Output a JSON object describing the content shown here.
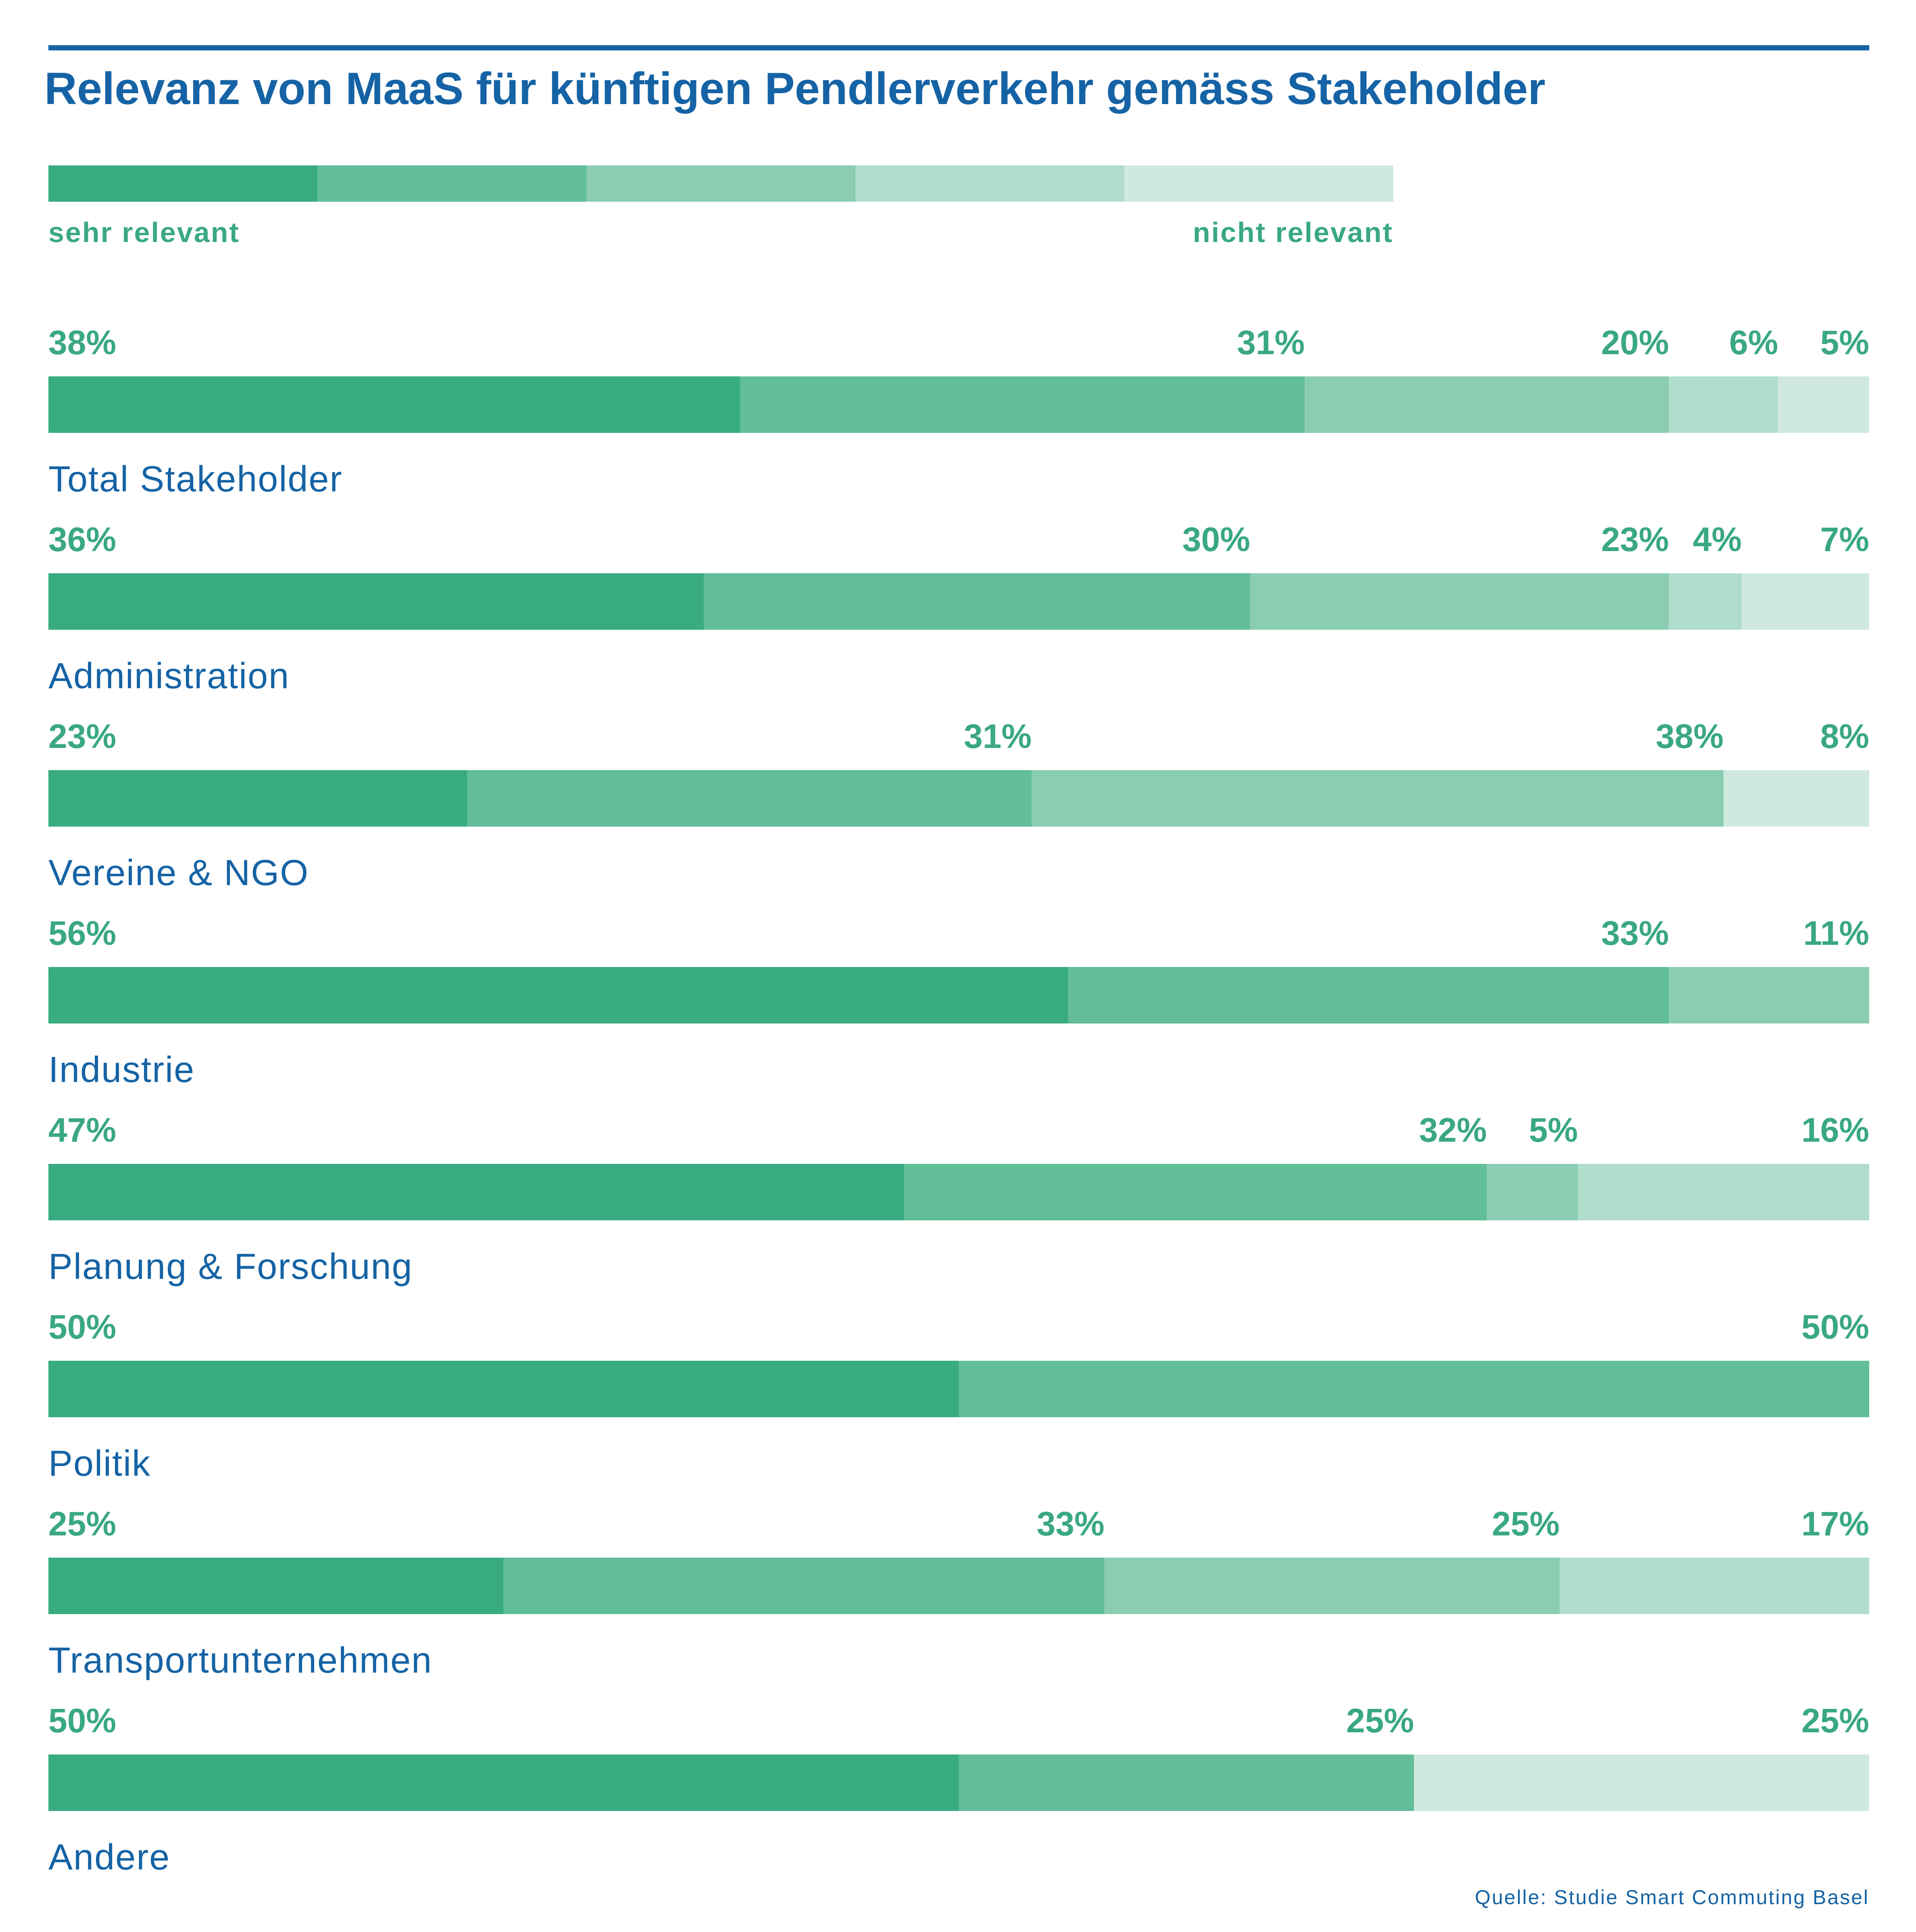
{
  "title": "Relevanz von MaaS für künftigen Pendlerverkehr gemäss Stakeholder",
  "source": "Quelle: Studie Smart Commuting Basel",
  "colors": {
    "title": "#1563a5",
    "text": "#1563a5",
    "labels": "#3aa882",
    "levels": [
      "#38ac80",
      "#61be98",
      "#8bcdb2",
      "#b1ddcc",
      "#d0e9de"
    ]
  },
  "legend": {
    "left_label": "sehr relevant",
    "right_label": "nicht relevant",
    "levels": 5
  },
  "chart_data": {
    "type": "bar",
    "orientation": "horizontal",
    "stacked": "100%",
    "unit": "%",
    "categories": [
      "Total Stakeholder",
      "Administration",
      "Vereine & NGO",
      "Industrie",
      "Planung & Forschung",
      "Politik",
      "Transportunternehmen",
      "Andere"
    ],
    "levels_order": "sehr relevant → nicht relevant (level 1 to 5)",
    "rows": [
      {
        "category": "Total Stakeholder",
        "segments": [
          {
            "level": 1,
            "value": 38
          },
          {
            "level": 2,
            "value": 31
          },
          {
            "level": 3,
            "value": 20
          },
          {
            "level": 4,
            "value": 6
          },
          {
            "level": 5,
            "value": 5
          }
        ]
      },
      {
        "category": "Administration",
        "segments": [
          {
            "level": 1,
            "value": 36
          },
          {
            "level": 2,
            "value": 30
          },
          {
            "level": 3,
            "value": 23
          },
          {
            "level": 4,
            "value": 4
          },
          {
            "level": 5,
            "value": 7
          }
        ]
      },
      {
        "category": "Vereine & NGO",
        "segments": [
          {
            "level": 1,
            "value": 23
          },
          {
            "level": 2,
            "value": 31
          },
          {
            "level": 3,
            "value": 38
          },
          {
            "level": 5,
            "value": 8
          }
        ]
      },
      {
        "category": "Industrie",
        "segments": [
          {
            "level": 1,
            "value": 56
          },
          {
            "level": 2,
            "value": 33
          },
          {
            "level": 3,
            "value": 11
          }
        ]
      },
      {
        "category": "Planung & Forschung",
        "segments": [
          {
            "level": 1,
            "value": 47
          },
          {
            "level": 2,
            "value": 32
          },
          {
            "level": 3,
            "value": 5
          },
          {
            "level": 4,
            "value": 16
          }
        ]
      },
      {
        "category": "Politik",
        "segments": [
          {
            "level": 1,
            "value": 50
          },
          {
            "level": 2,
            "value": 50
          }
        ]
      },
      {
        "category": "Transportunternehmen",
        "segments": [
          {
            "level": 1,
            "value": 25
          },
          {
            "level": 2,
            "value": 33
          },
          {
            "level": 3,
            "value": 25
          },
          {
            "level": 4,
            "value": 17
          }
        ]
      },
      {
        "category": "Andere",
        "segments": [
          {
            "level": 1,
            "value": 50
          },
          {
            "level": 2,
            "value": 25
          },
          {
            "level": 5,
            "value": 25
          }
        ]
      }
    ],
    "xlim": [
      0,
      100
    ]
  }
}
